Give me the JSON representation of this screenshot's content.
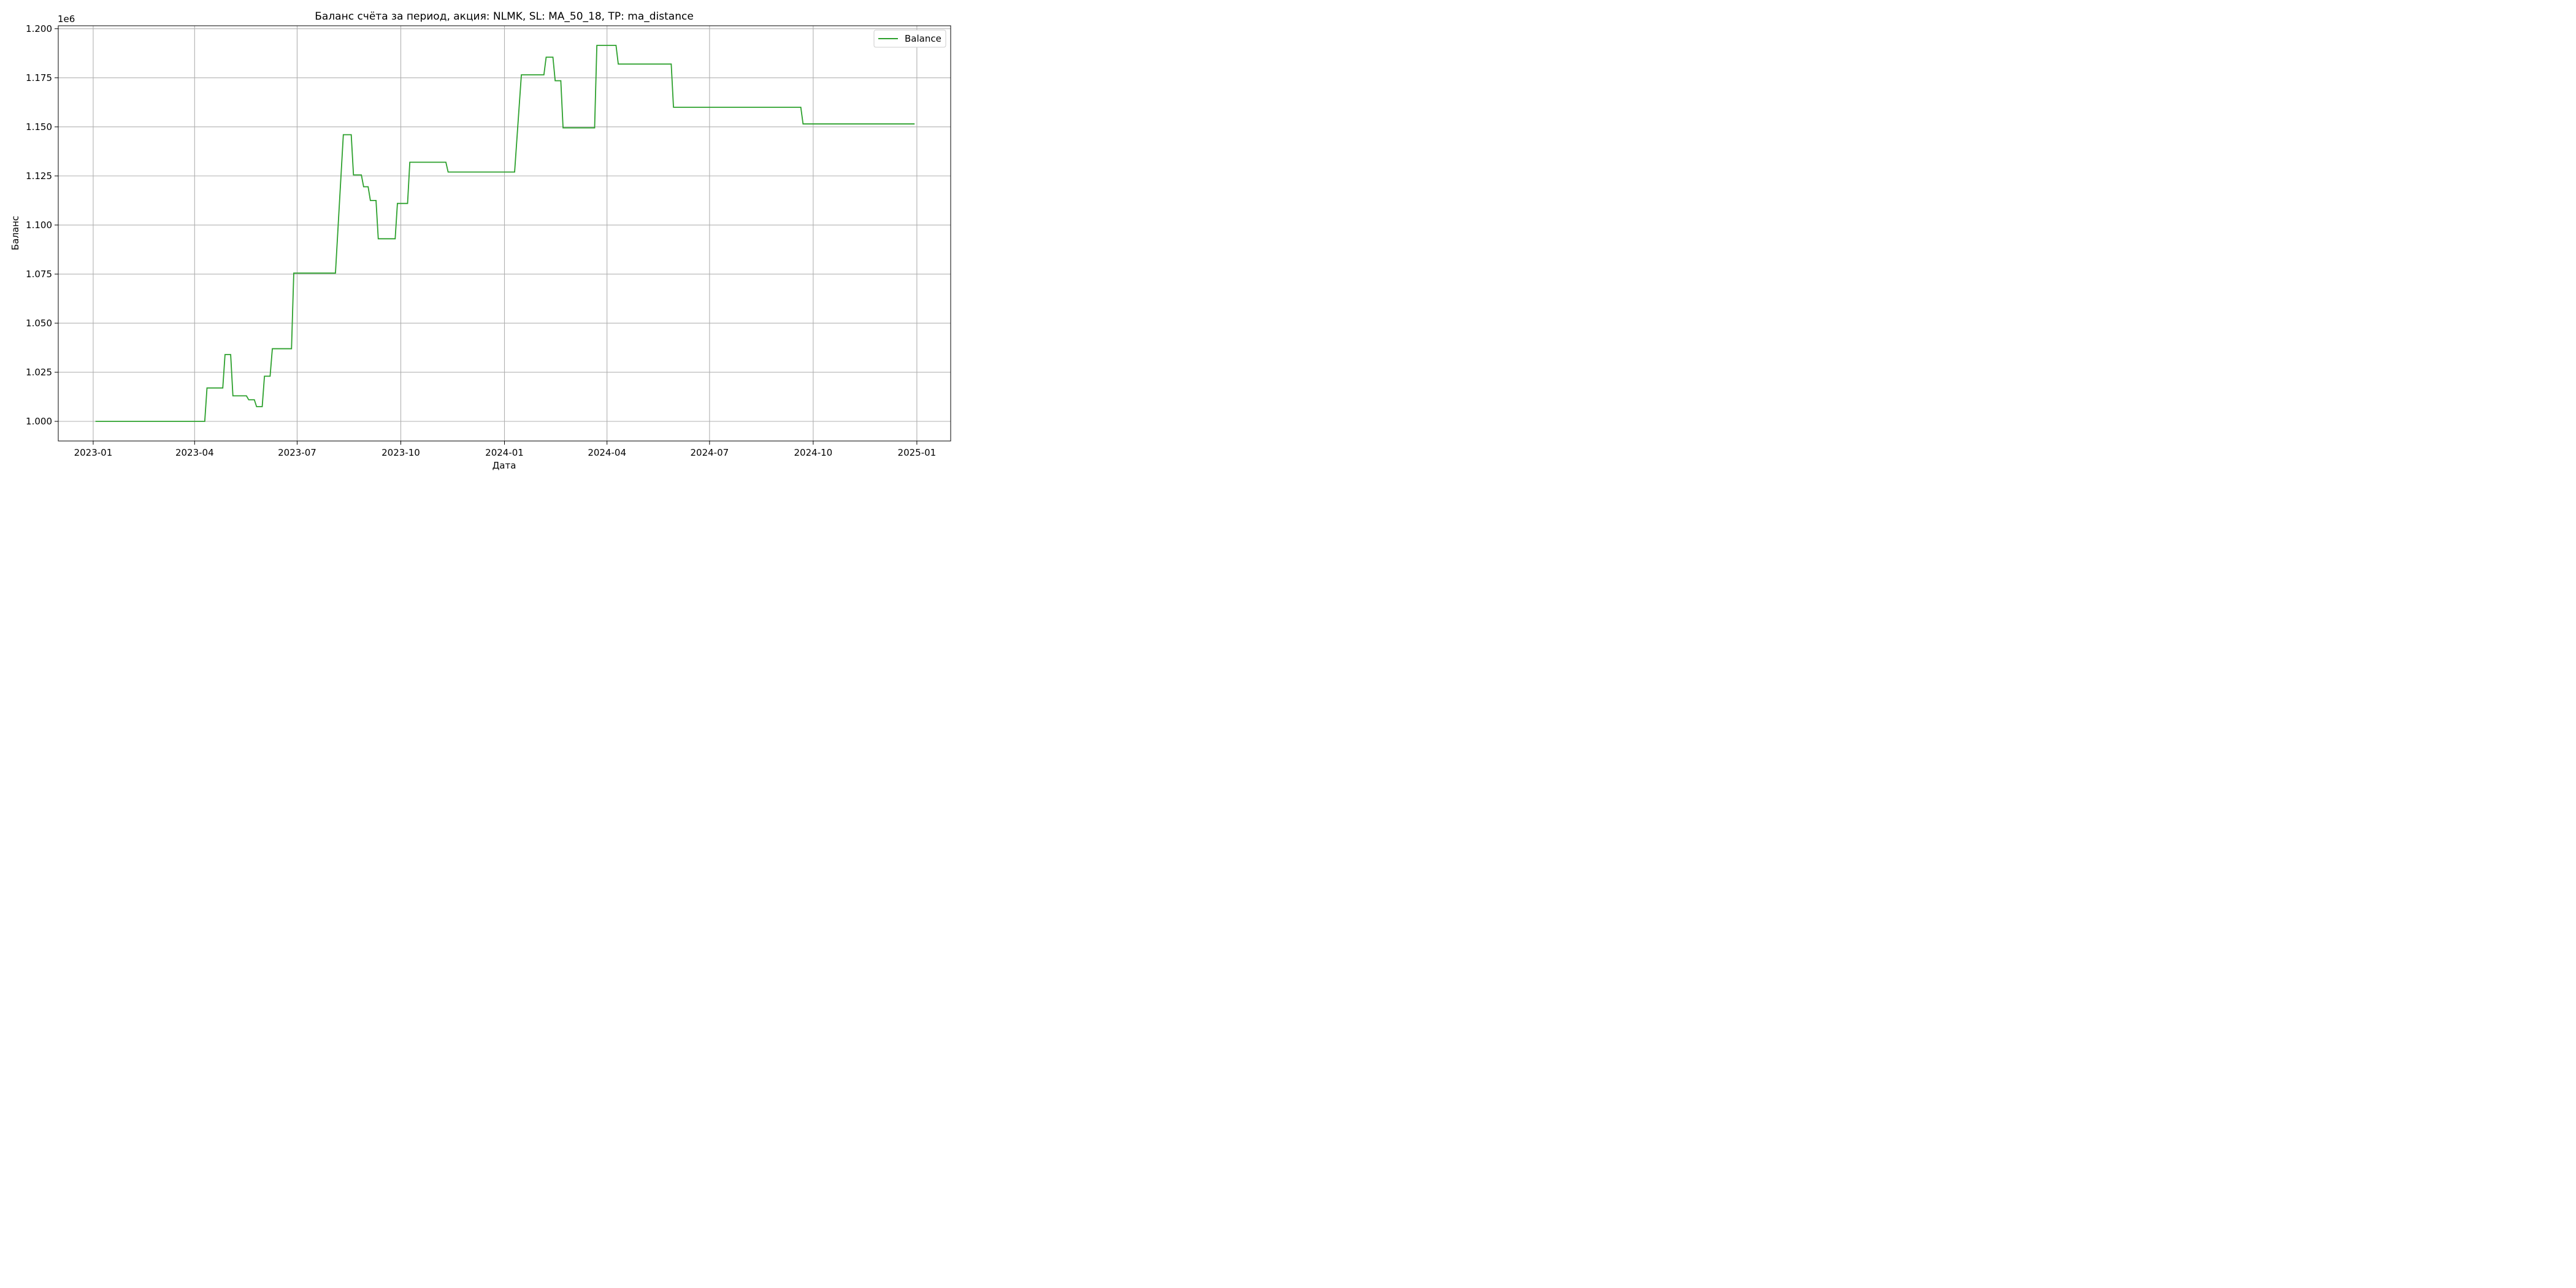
{
  "chart_data": {
    "type": "line",
    "title": "Баланс счёта за период, акция: NLMK, SL: MA_50_18, TP: ma_distance",
    "xlabel": "Дата",
    "ylabel": "Баланс",
    "y_offset_label": "1e6",
    "xlim": [
      "2022-12-01",
      "2025-01-31"
    ],
    "ylim": [
      0.99,
      1.2015
    ],
    "x_ticks": [
      "2023-01-01",
      "2023-04-01",
      "2023-07-01",
      "2023-10-01",
      "2024-01-01",
      "2024-04-01",
      "2024-07-01",
      "2024-10-01",
      "2025-01-01"
    ],
    "x_tick_labels": [
      "2023-01",
      "2023-04",
      "2023-07",
      "2023-10",
      "2024-01",
      "2024-04",
      "2024-07",
      "2024-10",
      "2025-01"
    ],
    "y_ticks": [
      1.0,
      1.025,
      1.05,
      1.075,
      1.1,
      1.125,
      1.15,
      1.175,
      1.2
    ],
    "y_tick_labels": [
      "1.000",
      "1.025",
      "1.050",
      "1.075",
      "1.100",
      "1.125",
      "1.150",
      "1.175",
      "1.200"
    ],
    "grid": true,
    "legend_position": "top-right",
    "series": [
      {
        "name": "Balance",
        "color": "#2ca02c",
        "x": [
          "2023-01-03",
          "2023-04-10",
          "2023-04-12",
          "2023-04-26",
          "2023-04-28",
          "2023-05-03",
          "2023-05-05",
          "2023-05-17",
          "2023-05-19",
          "2023-05-24",
          "2023-05-26",
          "2023-05-31",
          "2023-06-02",
          "2023-06-07",
          "2023-06-09",
          "2023-06-26",
          "2023-06-28",
          "2023-08-04",
          "2023-08-11",
          "2023-08-18",
          "2023-08-20",
          "2023-08-27",
          "2023-08-29",
          "2023-09-02",
          "2023-09-04",
          "2023-09-09",
          "2023-09-11",
          "2023-09-26",
          "2023-09-28",
          "2023-10-07",
          "2023-10-09",
          "2023-11-10",
          "2023-11-12",
          "2024-01-10",
          "2024-01-16",
          "2024-02-05",
          "2024-02-07",
          "2024-02-13",
          "2024-02-15",
          "2024-02-20",
          "2024-02-22",
          "2024-03-21",
          "2024-03-23",
          "2024-04-09",
          "2024-04-11",
          "2024-05-28",
          "2024-05-30",
          "2024-09-20",
          "2024-09-22",
          "2024-12-30"
        ],
        "values": [
          1.0,
          1.0,
          1.017,
          1.017,
          1.034,
          1.034,
          1.013,
          1.013,
          1.011,
          1.011,
          1.0075,
          1.0075,
          1.023,
          1.023,
          1.037,
          1.037,
          1.0755,
          1.0755,
          1.146,
          1.146,
          1.1255,
          1.1255,
          1.1195,
          1.1195,
          1.1125,
          1.1125,
          1.093,
          1.093,
          1.111,
          1.111,
          1.132,
          1.132,
          1.127,
          1.127,
          1.1765,
          1.1765,
          1.1855,
          1.1855,
          1.1735,
          1.1735,
          1.1495,
          1.1495,
          1.1915,
          1.1915,
          1.182,
          1.182,
          1.16,
          1.16,
          1.1515,
          1.1515
        ]
      }
    ]
  }
}
